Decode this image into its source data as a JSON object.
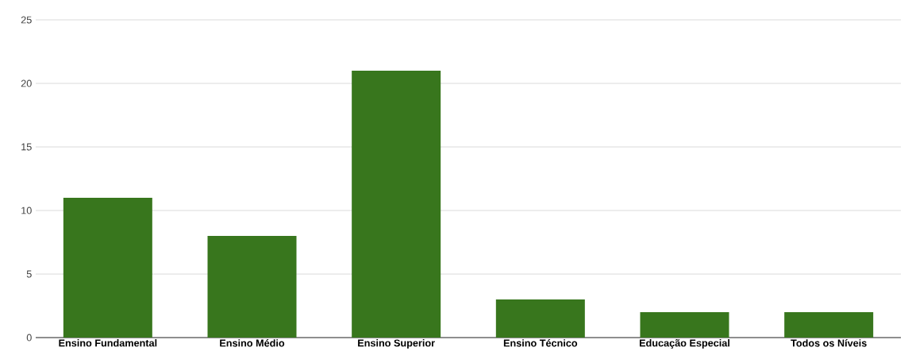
{
  "chart_data": {
    "type": "bar",
    "categories": [
      "Ensino Fundamental",
      "Ensino Médio",
      "Ensino Superior",
      "Ensino Técnico",
      "Educação Especial",
      "Todos os Níveis"
    ],
    "values": [
      11,
      8,
      21,
      3,
      2,
      2
    ],
    "color": "#38761d",
    "ylim": [
      0,
      25
    ],
    "yticks": [
      0,
      5,
      10,
      15,
      20,
      25
    ],
    "grid": "y",
    "legend": false
  }
}
